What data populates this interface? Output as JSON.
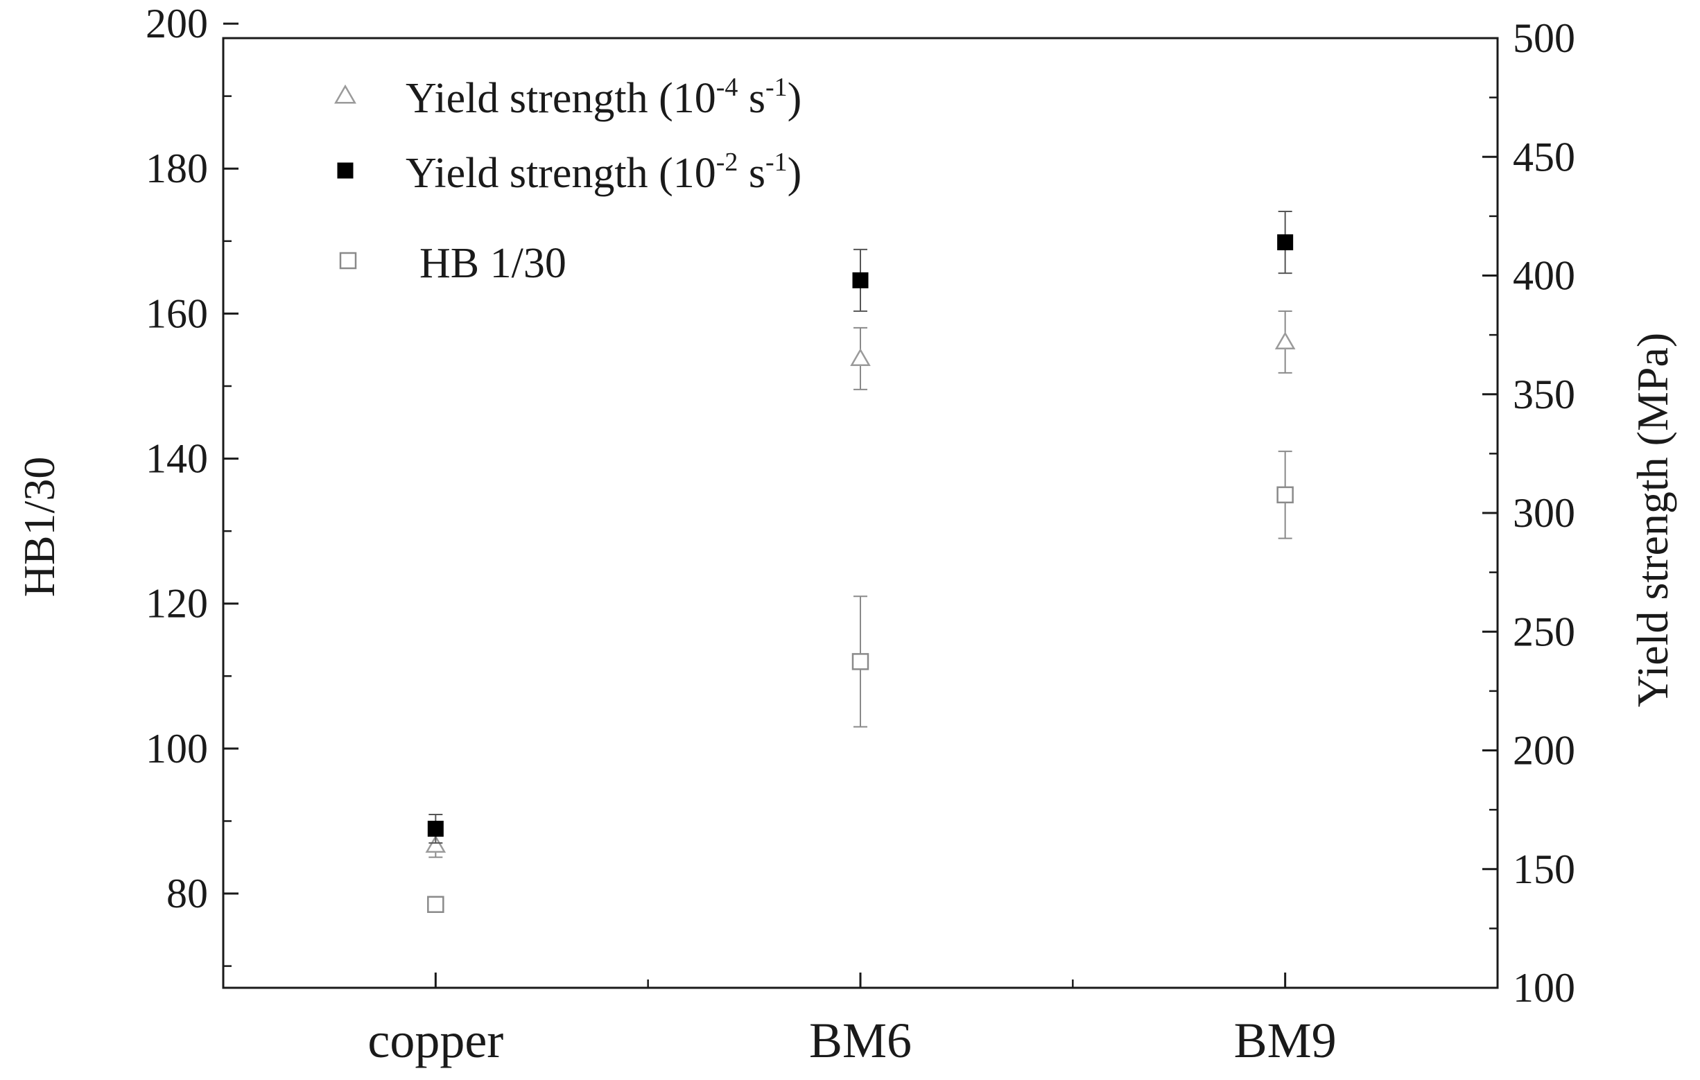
{
  "chart_data": {
    "type": "scatter",
    "categories": [
      "copper",
      "BM6",
      "BM9"
    ],
    "ylabel": "HB1/30",
    "y2label": "Yield strength (MPa)",
    "ylim": [
      67,
      198
    ],
    "y2lim": [
      100,
      500
    ],
    "yticks": [
      80,
      100,
      120,
      140,
      160,
      180,
      200
    ],
    "y2ticks": [
      100,
      150,
      200,
      250,
      300,
      350,
      400,
      450,
      500
    ],
    "legend_position": "top-left",
    "series": [
      {
        "name": "Yield strength (10-4 s-1)",
        "legend_main": "Yield strength (10",
        "legend_exp1": "-4",
        "legend_mid": " s",
        "legend_exp2": "-1",
        "legend_end": ")",
        "axis": "right",
        "marker": "open-triangle",
        "color": "#9a9a9a",
        "values": [
          160,
          365,
          372
        ],
        "errors": [
          5,
          13,
          13
        ]
      },
      {
        "name": "Yield strength (10-2 s-1)",
        "legend_main": "Yield strength (10",
        "legend_exp1": "-2",
        "legend_mid": " s",
        "legend_exp2": "-1",
        "legend_end": ")",
        "axis": "right",
        "marker": "filled-square",
        "color": "#000000",
        "values": [
          167,
          398,
          414
        ],
        "errors": [
          6,
          13,
          13
        ]
      },
      {
        "name": "HB 1/30",
        "legend_main": "HB 1/30",
        "axis": "left",
        "marker": "open-square",
        "color": "#8a8a8a",
        "values": [
          78.5,
          112,
          135
        ],
        "errors": [
          0.5,
          9,
          6
        ]
      }
    ]
  }
}
